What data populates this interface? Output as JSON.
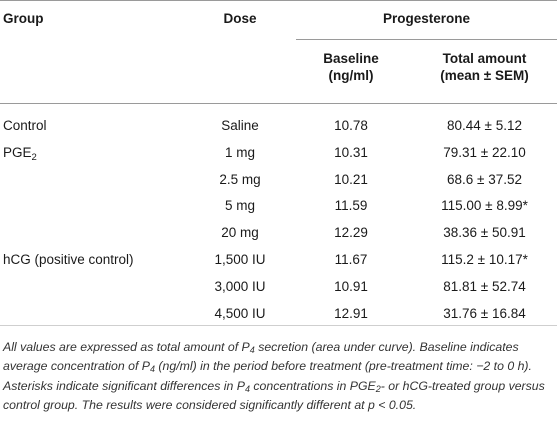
{
  "table": {
    "headers": {
      "group": "Group",
      "dose": "Dose",
      "progesterone": "Progesterone",
      "baseline_line1": "Baseline",
      "baseline_line2": "(ng/ml)",
      "total_line1": "Total amount",
      "total_line2": "(mean ± SEM)"
    },
    "rows": [
      {
        "group": "Control",
        "group_sub": "",
        "dose": "Saline",
        "baseline": "10.78",
        "total": "80.44 ± 5.12"
      },
      {
        "group": "PGE",
        "group_sub": "2",
        "dose": "1 mg",
        "baseline": "10.31",
        "total": "79.31 ± 22.10"
      },
      {
        "group": "",
        "group_sub": "",
        "dose": "2.5 mg",
        "baseline": "10.21",
        "total": "68.6 ± 37.52"
      },
      {
        "group": "",
        "group_sub": "",
        "dose": "5 mg",
        "baseline": "11.59",
        "total": "115.00 ± 8.99*"
      },
      {
        "group": "",
        "group_sub": "",
        "dose": "20 mg",
        "baseline": "12.29",
        "total": "38.36 ± 50.91"
      },
      {
        "group": "hCG (positive control)",
        "group_sub": "",
        "dose": "1,500 IU",
        "baseline": "11.67",
        "total": "115.2 ± 10.17*"
      },
      {
        "group": "",
        "group_sub": "",
        "dose": "3,000 IU",
        "baseline": "10.91",
        "total": "81.81 ± 52.74"
      },
      {
        "group": "",
        "group_sub": "",
        "dose": "4,500 IU",
        "baseline": "12.91",
        "total": "31.76 ± 16.84"
      }
    ]
  },
  "footnote": {
    "t1": "All values are expressed as total amount of P",
    "s1": "4",
    "t2": " secretion (area under curve). Baseline indicates average concentration of P",
    "s2": "4",
    "t3": " (ng/ml) in the period before treatment (pre-treatment time: −2 to 0 h). Asterisks indicate significant differences in P",
    "s3": "4",
    "t4": " concentrations in PGE",
    "s4": "2",
    "t5": "- or hCG-treated group versus control group. The results were considered significantly different at p < 0.05."
  }
}
